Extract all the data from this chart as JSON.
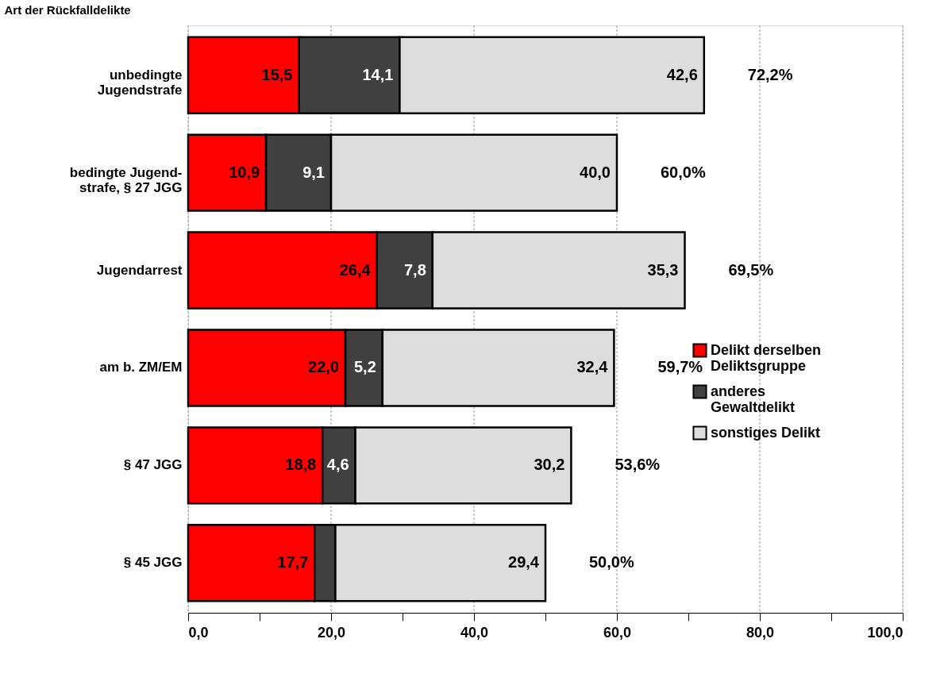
{
  "chart_data": {
    "type": "bar",
    "orientation": "horizontal",
    "stacked": true,
    "ylabel": "Art der Rückfalldelikte",
    "categories": [
      "unbedingte\nJugendstrafe",
      "bedingte Jugend-\nstrafe, § 27 JGG",
      "Jugendarrest",
      "am b. ZM/EM",
      "§ 47 JGG",
      "§ 45 JGG"
    ],
    "series": [
      {
        "name": "Delikt derselben\nDeliktsgruppe",
        "color": "#ff0000",
        "values": [
          15.5,
          10.9,
          26.4,
          22.0,
          18.8,
          17.7
        ],
        "value_labels": [
          "15,5",
          "10,9",
          "26,4",
          "22,0",
          "18,8",
          "17,7"
        ]
      },
      {
        "name": "anderes\nGewaltdelikt",
        "color": "#404040",
        "values": [
          14.1,
          9.1,
          7.8,
          5.2,
          4.6,
          2.9
        ],
        "value_labels": [
          "14,1",
          "9,1",
          "7,8",
          "5,2",
          "4,6",
          null
        ]
      },
      {
        "name": "sonstiges Delikt",
        "color": "#dddddd",
        "values": [
          42.6,
          40.0,
          35.3,
          32.4,
          30.2,
          29.4
        ],
        "value_labels": [
          "42,6",
          "40,0",
          "35,3",
          "32,4",
          "30,2",
          "29,4"
        ]
      }
    ],
    "totals": [
      "72,2%",
      "60,0%",
      "69,5%",
      "59,7%",
      "53,6%",
      "50,0%"
    ],
    "xlim": [
      0,
      100
    ],
    "xticks": [
      {
        "value": 0,
        "label": "0,0"
      },
      {
        "value": 10,
        "label": null
      },
      {
        "value": 20,
        "label": "20,0"
      },
      {
        "value": 30,
        "label": null
      },
      {
        "value": 40,
        "label": "40,0"
      },
      {
        "value": 50,
        "label": null
      },
      {
        "value": 60,
        "label": "60,0"
      },
      {
        "value": 70,
        "label": null
      },
      {
        "value": 80,
        "label": "80,0"
      },
      {
        "value": 90,
        "label": null
      },
      {
        "value": 100,
        "label": "100,0"
      }
    ],
    "grid": "x",
    "legend": "right"
  }
}
